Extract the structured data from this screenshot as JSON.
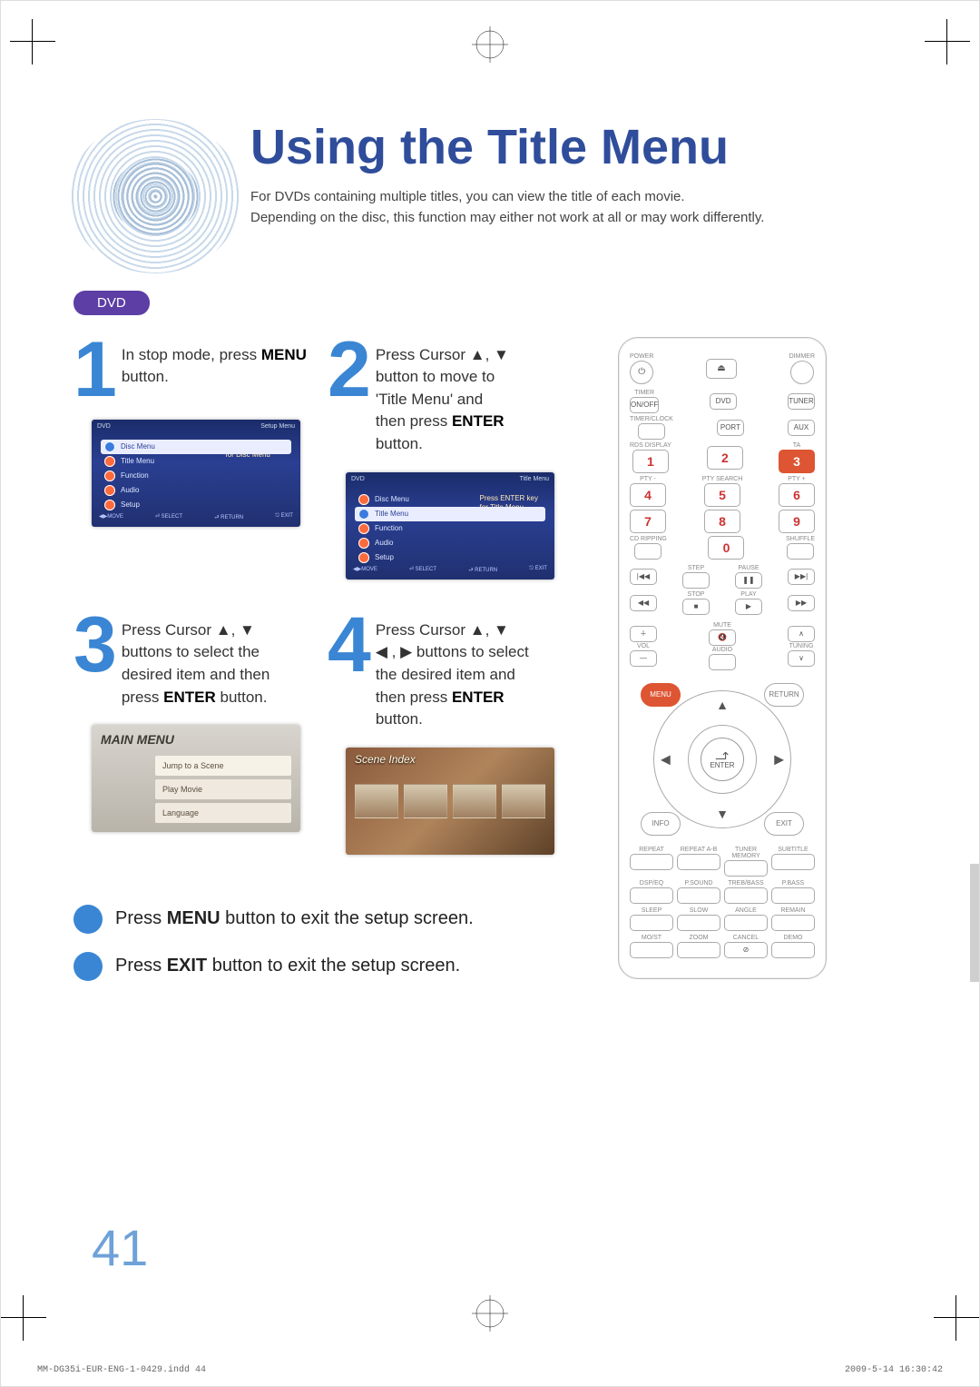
{
  "header": {
    "title": "Using the Title Menu",
    "subtitle_line1": "For DVDs containing multiple titles, you can view the title of each movie.",
    "subtitle_line2": "Depending on the disc, this function may either not work at all or may work differently."
  },
  "pill": {
    "label": "DVD",
    "bg": "#5c3ea5"
  },
  "steps": [
    {
      "num": "1",
      "text_pre": "In stop mode, press ",
      "text_bold": "MENU",
      "text_post": " button."
    },
    {
      "num": "2",
      "text_lines": [
        "Press Cursor ▲, ▼",
        "button to move to",
        "'Title Menu' and",
        "then press ",
        "ENTER",
        "button."
      ]
    },
    {
      "num": "3",
      "text_lines": [
        "Press Cursor ▲, ▼",
        "buttons to select the",
        "desired item and then",
        "press ",
        "ENTER",
        " button."
      ]
    },
    {
      "num": "4",
      "text_lines": [
        "Press Cursor ▲, ▼",
        "◀ , ▶ buttons to select",
        "the desired item and",
        "then press ",
        "ENTER",
        "button."
      ]
    }
  ],
  "screenshots": {
    "s1": {
      "bar_left": "DVD",
      "bar_right": "Setup Menu",
      "active": "Disc Menu",
      "items": [
        "Disc Menu",
        "Title Menu",
        "Function",
        "Audio",
        "Setup"
      ],
      "hint1": "Press ENTER key",
      "hint2": "for Disc Menu",
      "foot": [
        "◀▶MOVE",
        "⏎ SELECT",
        "⮐ RETURN",
        "⎋ EXIT"
      ],
      "bg_from": "#1b2c6a",
      "bg_to": "#2a3f92"
    },
    "s2": {
      "bar_left": "DVD",
      "bar_right": "Title Menu",
      "active": "Title Menu",
      "items": [
        "Disc Menu",
        "Title Menu",
        "Function",
        "Audio",
        "Setup"
      ],
      "hint1": "Press ENTER key",
      "hint2": "for Title Menu",
      "foot": [
        "◀▶MOVE",
        "⏎ SELECT",
        "⮐ RETURN",
        "⎋ EXIT"
      ]
    },
    "s3": {
      "title": "MAIN MENU",
      "rows": [
        "Jump to a Scene",
        "Play Movie",
        "Language"
      ]
    },
    "s4": {
      "title": "Scene Index"
    }
  },
  "exit": {
    "line1_pre": "Press ",
    "line1_bold": "MENU",
    "line1_post": " button to exit the setup screen.",
    "line2_pre": "Press ",
    "line2_bold": "EXIT",
    "line2_post": " button to exit the setup screen."
  },
  "page_number": "41",
  "remote": {
    "top": {
      "power": "POWER",
      "eject": "⏏",
      "dimmer": "DIMMER"
    },
    "src": {
      "timer": "TIMER",
      "onoff": "ON/OFF",
      "dvd": "DVD",
      "tuner": "TUNER",
      "timerclock": "TIMER/CLOCK",
      "port": "PORT",
      "aux": "AUX",
      "rds": "RDS DISPLAY",
      "ta": "TA"
    },
    "nums": {
      "1": "1",
      "2": "2",
      "3": "3",
      "4": "4",
      "5": "5",
      "6": "6",
      "7": "7",
      "8": "8",
      "9": "9",
      "0": "0",
      "pty_minus": "PTY -",
      "pty_search": "PTY SEARCH",
      "pty_plus": "PTY +",
      "cd_rip": "CD RIPPING",
      "shuffle": "SHUFFLE"
    },
    "transport": {
      "prev": "|◀◀",
      "step": "STEP",
      "pause": "❚❚",
      "pause_lbl": "PAUSE",
      "next": "▶▶|",
      "rew": "◀◀",
      "stop": "■",
      "stop_lbl": "STOP",
      "play": "▶",
      "play_lbl": "PLAY",
      "ff": "▶▶"
    },
    "mid": {
      "vol": "VOL",
      "plus": "＋",
      "minus": "—",
      "mute": "MUTE",
      "mute_sym": "🔇",
      "tuning": "TUNING",
      "up": "∧",
      "down": "∨",
      "audio": "AUDIO"
    },
    "dpad": {
      "menu": "MENU",
      "return": "RETURN",
      "info": "INFO",
      "exit": "EXIT",
      "enter": "ENTER",
      "enter_sym": "↵"
    },
    "bottom": [
      [
        "REPEAT",
        "REPEAT A-B",
        "TUNER MEMORY",
        "SUBTITLE"
      ],
      [
        "DSP/EQ",
        "P.SOUND",
        "TREB/BASS",
        "P.BASS"
      ],
      [
        "SLEEP",
        "SLOW",
        "ANGLE",
        "REMAIN"
      ],
      [
        "MO/ST",
        "ZOOM",
        "CANCEL",
        "DEMO"
      ]
    ],
    "cancel_sym": "⊘"
  },
  "footer": {
    "left": "MM-DG35i-EUR-ENG-1-0429.indd   44",
    "right": "2009-5-14   16:30:42"
  },
  "colors": {
    "accent": "#3a86d4",
    "title": "#2f4d9a",
    "num": "#c33"
  }
}
